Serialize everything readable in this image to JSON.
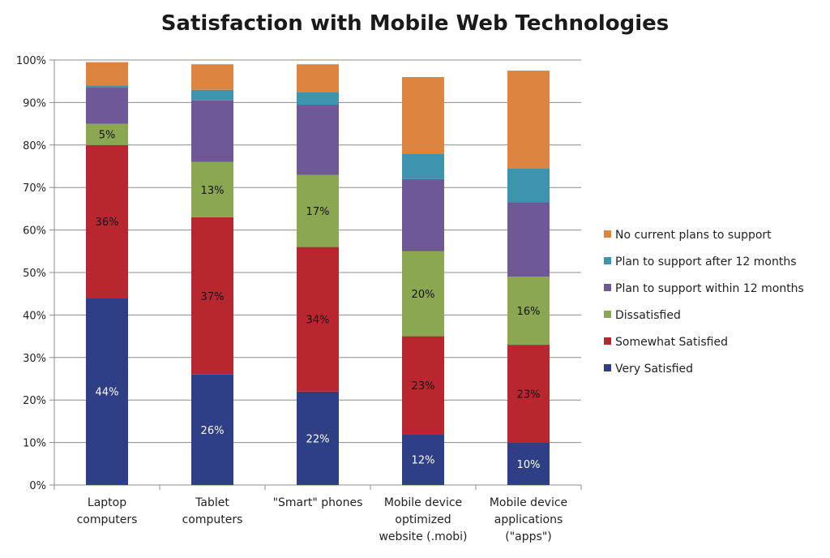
{
  "chart_data": {
    "type": "bar",
    "stacked": true,
    "title": "Satisfaction with Mobile Web Technologies",
    "categories": [
      "Laptop computers",
      "Tablet computers",
      "\"Smart\" phones",
      "Mobile device optimized website (.mobi)",
      "Mobile device applications (\"apps\")"
    ],
    "category_label_lines": [
      [
        "Laptop",
        "computers"
      ],
      [
        "Tablet",
        "computers"
      ],
      [
        "\"Smart\" phones"
      ],
      [
        "Mobile device",
        "optimized",
        "website (.mobi)"
      ],
      [
        "Mobile device",
        "applications",
        "(\"apps\")"
      ]
    ],
    "series": [
      {
        "name": "Very Satisfied",
        "color": "#2E3F86",
        "label_color": "#ffffff",
        "values": [
          44,
          26,
          22,
          12,
          10
        ],
        "labels": [
          "44%",
          "26%",
          "22%",
          "12%",
          "10%"
        ]
      },
      {
        "name": "Somewhat Satisfied",
        "color": "#B8262F",
        "label_color": "#111111",
        "values": [
          36,
          37,
          34,
          23,
          23
        ],
        "labels": [
          "36%",
          "37%",
          "34%",
          "23%",
          "23%"
        ]
      },
      {
        "name": "Dissatisfied",
        "color": "#8BA752",
        "label_color": "#111111",
        "values": [
          5,
          13,
          17,
          20,
          16
        ],
        "labels": [
          "5%",
          "13%",
          "17%",
          "20%",
          "16%"
        ]
      },
      {
        "name": "Plan to support within 12 months",
        "color": "#6E5896",
        "label_color": "#111111",
        "values": [
          8.5,
          14.5,
          16.5,
          17,
          17.5
        ],
        "labels": [
          "",
          "",
          "",
          "",
          ""
        ]
      },
      {
        "name": "Plan to support after 12 months",
        "color": "#3C95AD",
        "label_color": "#111111",
        "values": [
          0.5,
          2.5,
          3,
          6,
          8
        ],
        "labels": [
          "",
          "",
          "",
          "",
          ""
        ]
      },
      {
        "name": "No current plans to support",
        "color": "#DD8540",
        "label_color": "#111111",
        "values": [
          5.5,
          6,
          6.5,
          18,
          23
        ],
        "labels": [
          "",
          "",
          "",
          "",
          ""
        ]
      }
    ],
    "ylim": [
      0,
      100
    ],
    "yticks": [
      "0%",
      "10%",
      "20%",
      "30%",
      "40%",
      "50%",
      "60%",
      "70%",
      "80%",
      "90%",
      "100%"
    ],
    "grid": true,
    "legend_position": "right"
  }
}
